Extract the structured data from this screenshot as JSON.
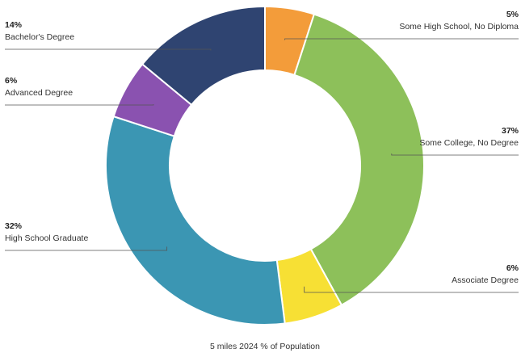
{
  "chart_data": {
    "type": "pie",
    "donut": true,
    "caption": "5 miles 2024 % of Population",
    "slices": [
      {
        "label": "Some High School, No Diploma",
        "value": 5,
        "display": "5%",
        "color": "#f39c3a"
      },
      {
        "label": "Some College, No Degree",
        "value": 37,
        "display": "37%",
        "color": "#8dc05a"
      },
      {
        "label": "Associate Degree",
        "value": 6,
        "display": "6%",
        "color": "#f7e034"
      },
      {
        "label": "High School Graduate",
        "value": 32,
        "display": "32%",
        "color": "#3b96b3"
      },
      {
        "label": "Advanced Degree",
        "value": 6,
        "display": "6%",
        "color": "#8a52b0"
      },
      {
        "label": "Bachelor's Degree",
        "value": 14,
        "display": "14%",
        "color": "#2f4471"
      }
    ]
  }
}
